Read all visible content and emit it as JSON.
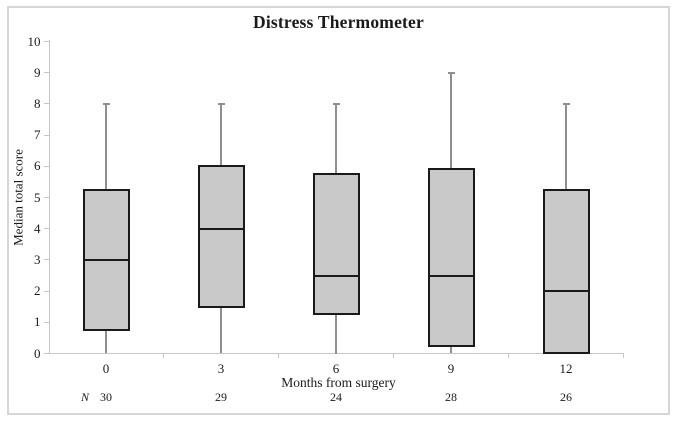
{
  "title": "Distress Thermometer",
  "colors": {
    "box_fill": "#c9c9c9",
    "box_border": "#1a1a1a",
    "median": "#1a1a1a",
    "whisker": "#8f8f8f",
    "axis": "#c6c6c6",
    "text": "#1a1a1a",
    "figure_border": "#d6d6d6",
    "background": "#ffffff"
  },
  "chart_data": {
    "type": "boxplot",
    "title": "Distress Thermometer",
    "xlabel": "Months from surgery",
    "ylabel": "Median total score",
    "ylim": [
      0,
      10
    ],
    "yticks": [
      0,
      1,
      2,
      3,
      4,
      5,
      6,
      7,
      8,
      9,
      10
    ],
    "grid": false,
    "legend": false,
    "categories": [
      "0",
      "3",
      "6",
      "9",
      "12"
    ],
    "n_row_label": "N",
    "boxes": [
      {
        "category": "0",
        "n": 30,
        "whisker_low": 0,
        "q1": 0.75,
        "median": 3,
        "q3": 5.25,
        "whisker_high": 8
      },
      {
        "category": "3",
        "n": 29,
        "whisker_low": 0,
        "q1": 1.5,
        "median": 4,
        "q3": 6,
        "whisker_high": 8
      },
      {
        "category": "6",
        "n": 24,
        "whisker_low": 0,
        "q1": 1.25,
        "median": 2.5,
        "q3": 5.75,
        "whisker_high": 8
      },
      {
        "category": "9",
        "n": 28,
        "whisker_low": 0,
        "q1": 0.25,
        "median": 2.5,
        "q3": 5.9,
        "whisker_high": 9
      },
      {
        "category": "12",
        "n": 26,
        "whisker_low": 0,
        "q1": 0,
        "median": 2,
        "q3": 5.25,
        "whisker_high": 8
      }
    ]
  }
}
